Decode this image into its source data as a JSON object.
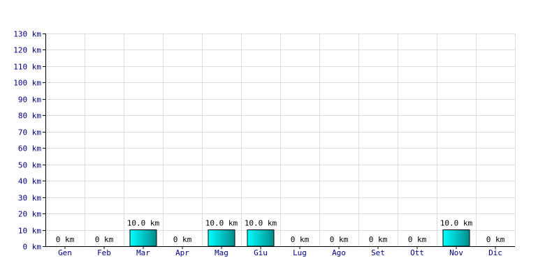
{
  "chart_data": {
    "type": "bar",
    "categories": [
      "Gen",
      "Feb",
      "Mar",
      "Apr",
      "Mag",
      "Giu",
      "Lug",
      "Ago",
      "Set",
      "Ott",
      "Nov",
      "Dic"
    ],
    "values": [
      0,
      0,
      10,
      0,
      10,
      10,
      0,
      0,
      0,
      0,
      10,
      0
    ],
    "value_labels": [
      "0 km",
      "0 km",
      "10.0 km",
      "0 km",
      "10.0 km",
      "10.0 km",
      "0 km",
      "0 km",
      "0 km",
      "0 km",
      "10.0 km",
      "0 km"
    ],
    "y_ticks": [
      0,
      10,
      20,
      30,
      40,
      50,
      60,
      70,
      80,
      90,
      100,
      110,
      120,
      130
    ],
    "y_tick_labels": [
      "0 km",
      "10 km",
      "20 km",
      "30 km",
      "40 km",
      "50 km",
      "60 km",
      "70 km",
      "80 km",
      "90 km",
      "100 km",
      "110 km",
      "120 km",
      "130 km"
    ],
    "ylim": [
      0,
      130
    ],
    "grid": true,
    "colors": {
      "bar_light": "#00ffff",
      "bar_dark": "#008b8b",
      "grid": "#dcdcdc",
      "tick_text": "#000080",
      "axis": "#000000"
    }
  }
}
